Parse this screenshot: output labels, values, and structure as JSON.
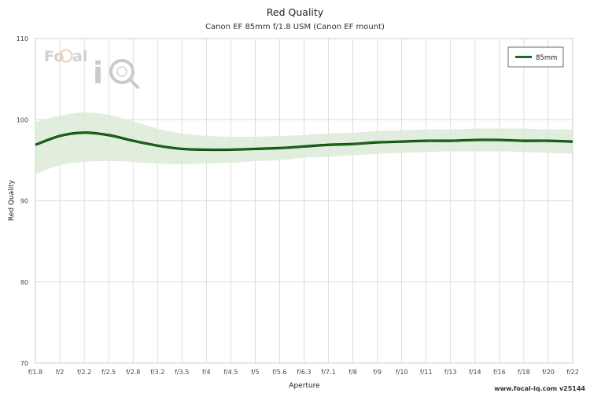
{
  "chart_data": {
    "type": "line",
    "title": "Red Quality",
    "subtitle": "Canon EF 85mm f/1.8 USM (Canon EF mount)",
    "xlabel": "Aperture",
    "ylabel": "Red Quality",
    "ylim": [
      70,
      110
    ],
    "yticks": [
      70,
      80,
      90,
      100,
      110
    ],
    "categories": [
      "f/1.8",
      "f/2",
      "f/2.2",
      "f/2.5",
      "f/2.8",
      "f/3.2",
      "f/3.5",
      "f/4",
      "f/4.5",
      "f/5",
      "f/5.6",
      "f/6.3",
      "f/7.1",
      "f/8",
      "f/9",
      "f/10",
      "f/11",
      "f/13",
      "f/14",
      "f/16",
      "f/18",
      "f/20",
      "f/22"
    ],
    "series": [
      {
        "name": "85mm",
        "color": "#1a6b1a",
        "values": [
          96.9,
          98.0,
          98.4,
          98.1,
          97.4,
          96.8,
          96.4,
          96.3,
          96.3,
          96.4,
          96.5,
          96.7,
          96.9,
          97.0,
          97.2,
          97.3,
          97.4,
          97.4,
          97.5,
          97.5,
          97.4,
          97.4,
          97.3
        ],
        "band_upper": [
          99.7,
          100.5,
          100.9,
          100.6,
          99.8,
          98.9,
          98.3,
          98.0,
          97.9,
          97.9,
          98.0,
          98.1,
          98.3,
          98.4,
          98.6,
          98.7,
          98.8,
          98.8,
          98.9,
          98.9,
          98.9,
          98.8,
          98.8
        ],
        "band_lower": [
          93.3,
          94.4,
          94.8,
          94.9,
          94.8,
          94.6,
          94.5,
          94.6,
          94.7,
          94.9,
          95.0,
          95.3,
          95.4,
          95.6,
          95.8,
          95.9,
          96.0,
          96.1,
          96.1,
          96.1,
          96.0,
          95.9,
          95.8
        ]
      }
    ],
    "band_color": "#dcebd8",
    "grid": true,
    "legend": "top-right"
  },
  "watermark": {
    "logo_text": "FoCal iQ"
  },
  "footer": {
    "text": "www.focal-iq.com  v25144"
  }
}
